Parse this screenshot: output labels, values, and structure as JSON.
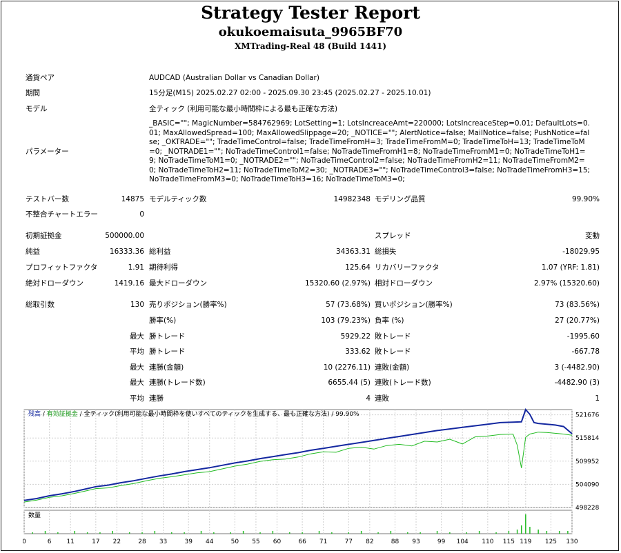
{
  "header": {
    "title": "Strategy Tester Report",
    "ea_name": "okukoemaisuta_9965BF70",
    "server": "XMTrading-Real 48 (Build 1441)"
  },
  "settings": {
    "symbol_label": "通貨ペア",
    "symbol_value": "AUDCAD (Australian Dollar vs Canadian Dollar)",
    "period_label": "期間",
    "period_value": "15分足(M15) 2025.02.27 02:00 - 2025.09.30 23:45 (2025.02.27 - 2025.10.01)",
    "model_label": "モデル",
    "model_value": "全ティック (利用可能な最小時間枠による最も正確な方法)",
    "params_label": "パラメーター",
    "params_value": "_BASIC=\"\"; MagicNumber=584762969; LotSetting=1; LotsIncreaceAmt=220000; LotsIncreaceStep=0.01; DefaultLots=0.01; MaxAllowedSpread=100; MaxAllowedSlippage=20; _NOTICE=\"\"; AlertNotice=false; MailNotice=false; PushNotice=false; _OKTRADE=\"\"; TradeTimeControl=false; TradeTimeFromH=3; TradeTimeFromM=0; TradeTimeToH=13; TradeTimeToM=0; _NOTRADE1=\"\"; NoTradeTimeControl1=false; NoTradeTimeFromH1=8; NoTradeTimeFromM1=0; NoTradeTimeToH1=9; NoTradeTimeToM1=0; _NOTRADE2=\"\"; NoTradeTimeControl2=false; NoTradeTimeFromH2=11; NoTradeTimeFromM2=0; NoTradeTimeToH2=11; NoTradeTimeToM2=30; _NOTRADE3=\"\"; NoTradeTimeControl3=false; NoTradeTimeFromH3=15; NoTradeTimeFromM3=0; NoTradeTimeToH3=16; NoTradeTimeToM3=0;"
  },
  "quality": {
    "bars_label": "テストバー数",
    "bars_value": "14875",
    "ticks_label": "モデルティック数",
    "ticks_value": "14982348",
    "modeling_label": "モデリング品質",
    "modeling_value": "99.90%",
    "mismatch_label": "不整合チャートエラー",
    "mismatch_value": "0"
  },
  "results": {
    "deposit_label": "初期証拠金",
    "deposit_value": "500000.00",
    "spread_label": "スプレッド",
    "spread_value": "変動",
    "net_label": "純益",
    "net_value": "16333.36",
    "gross_profit_label": "総利益",
    "gross_profit_value": "34363.31",
    "gross_loss_label": "総損失",
    "gross_loss_value": "-18029.95",
    "pf_label": "プロフィットファクタ",
    "pf_value": "1.91",
    "expected_label": "期待利得",
    "expected_value": "125.64",
    "recovery_label": "リカバリーファクタ",
    "recovery_value": "1.07 (YRF: 1.81)",
    "abs_dd_label": "絶対ドローダウン",
    "abs_dd_value": "1419.16",
    "max_dd_label": "最大ドローダウン",
    "max_dd_value": "15320.60 (2.97%)",
    "rel_dd_label": "相対ドローダウン",
    "rel_dd_value": "2.97% (15320.60)"
  },
  "trades": {
    "total_label": "総取引数",
    "total_value": "130",
    "short_label": "売りポジション(勝率%)",
    "short_value": "57 (73.68%)",
    "long_label": "買いポジション(勝率%)",
    "long_value": "73 (83.56%)",
    "winrate_label": "勝率(%)",
    "winrate_value": "103 (79.23%)",
    "lossrate_label": "負率 (%)",
    "lossrate_value": "27 (20.77%)",
    "max_label": "最大",
    "avg_label": "平均",
    "largest_win_label": "勝トレード",
    "largest_win_value": "5929.22",
    "largest_loss_label": "敗トレード",
    "largest_loss_value": "-1995.60",
    "avg_win_label": "勝トレード",
    "avg_win_value": "333.62",
    "avg_loss_label": "敗トレード",
    "avg_loss_value": "-667.78",
    "max_cons_win_amt_label": "連勝(金額)",
    "max_cons_win_amt_value": "10 (2276.11)",
    "max_cons_loss_amt_label": "連敗(金額)",
    "max_cons_loss_amt_value": "3 (-4482.90)",
    "max_cons_win_cnt_label": "連勝(トレード数)",
    "max_cons_win_cnt_value": "6655.44 (5)",
    "max_cons_loss_cnt_label": "連敗(トレード数)",
    "max_cons_loss_cnt_value": "-4482.90 (3)",
    "avg_cons_win_label": "連勝",
    "avg_cons_win_value": "4",
    "avg_cons_loss_label": "連敗",
    "avg_cons_loss_value": "1"
  },
  "chart_legend": {
    "balance": "残高",
    "sep1": " / ",
    "equity": "有効証拠金",
    "sep2": " / ",
    "model": "全ティック(利用可能な最小時間枠を使いすべてのティックを生成する、最も正確な方法)",
    "sep3": " / ",
    "quality": "99.90%",
    "volume": "数量"
  },
  "colors": {
    "balance": "#1428a0",
    "equity": "#22bb22",
    "volume": "#22bb22",
    "grid": "#cfcfcf"
  },
  "chart_data": {
    "type": "line",
    "x_ticks": [
      "0",
      "6",
      "11",
      "17",
      "22",
      "28",
      "33",
      "39",
      "44",
      "50",
      "55",
      "60",
      "66",
      "71",
      "77",
      "82",
      "88",
      "93",
      "99",
      "104",
      "110",
      "115",
      "119",
      "125",
      "130"
    ],
    "y_ticks": [
      "521676",
      "515814",
      "509952",
      "504090",
      "498228"
    ],
    "ylim": [
      498228,
      523000
    ],
    "xlim": [
      0,
      130
    ],
    "series": [
      {
        "name": "残高",
        "x": [
          0,
          3,
          6,
          9,
          12,
          15,
          17,
          20,
          23,
          26,
          29,
          32,
          35,
          38,
          41,
          44,
          47,
          50,
          53,
          56,
          59,
          62,
          65,
          68,
          71,
          74,
          77,
          80,
          83,
          86,
          89,
          92,
          95,
          98,
          101,
          104,
          107,
          110,
          113,
          116,
          118,
          119,
          120,
          121,
          122,
          124,
          126,
          128,
          130
        ],
        "y": [
          500000,
          500500,
          501200,
          501700,
          502300,
          503000,
          503500,
          503900,
          504500,
          505000,
          505600,
          506200,
          506700,
          507300,
          507800,
          508300,
          508900,
          509500,
          510000,
          510600,
          511100,
          511600,
          512100,
          512700,
          513200,
          513700,
          514200,
          514700,
          515200,
          515700,
          516200,
          516700,
          517200,
          517700,
          518100,
          518500,
          518900,
          519300,
          519700,
          519800,
          519900,
          523000,
          521800,
          519700,
          519500,
          519300,
          519100,
          518700,
          516900
        ]
      },
      {
        "name": "有効証拠金",
        "x": [
          0,
          3,
          6,
          9,
          12,
          15,
          17,
          20,
          23,
          26,
          29,
          32,
          35,
          38,
          41,
          44,
          47,
          50,
          53,
          56,
          59,
          62,
          65,
          68,
          71,
          74,
          77,
          80,
          83,
          86,
          89,
          92,
          95,
          98,
          101,
          104,
          107,
          110,
          113,
          116,
          117,
          118,
          119,
          120,
          122,
          124,
          126,
          128,
          130
        ],
        "y": [
          499600,
          500100,
          500800,
          501200,
          501800,
          502500,
          503000,
          503200,
          503800,
          504300,
          505000,
          505600,
          506000,
          506500,
          507000,
          507300,
          508000,
          508700,
          509200,
          509900,
          510300,
          510500,
          511000,
          511800,
          512300,
          512200,
          513200,
          513500,
          513000,
          513900,
          514200,
          513800,
          515000,
          514800,
          515500,
          514300,
          516100,
          516300,
          516700,
          516800,
          514000,
          508200,
          516000,
          516800,
          517300,
          517200,
          517000,
          516800,
          516500
        ]
      },
      {
        "name": "数量",
        "x": [
          2,
          5,
          8,
          12,
          15,
          18,
          21,
          25,
          28,
          31,
          35,
          38,
          42,
          45,
          49,
          52,
          56,
          59,
          63,
          66,
          70,
          73,
          77,
          80,
          84,
          87,
          91,
          94,
          98,
          101,
          105,
          108,
          112,
          115,
          117,
          118,
          119,
          120,
          122,
          124,
          127,
          129
        ],
        "y": [
          1,
          2,
          1,
          2,
          1,
          1,
          2,
          1,
          1,
          2,
          1,
          1,
          2,
          1,
          1,
          2,
          1,
          2,
          1,
          1,
          2,
          1,
          1,
          2,
          1,
          2,
          1,
          1,
          2,
          1,
          1,
          2,
          1,
          2,
          3,
          6,
          14,
          5,
          3,
          2,
          2,
          2
        ]
      }
    ]
  }
}
